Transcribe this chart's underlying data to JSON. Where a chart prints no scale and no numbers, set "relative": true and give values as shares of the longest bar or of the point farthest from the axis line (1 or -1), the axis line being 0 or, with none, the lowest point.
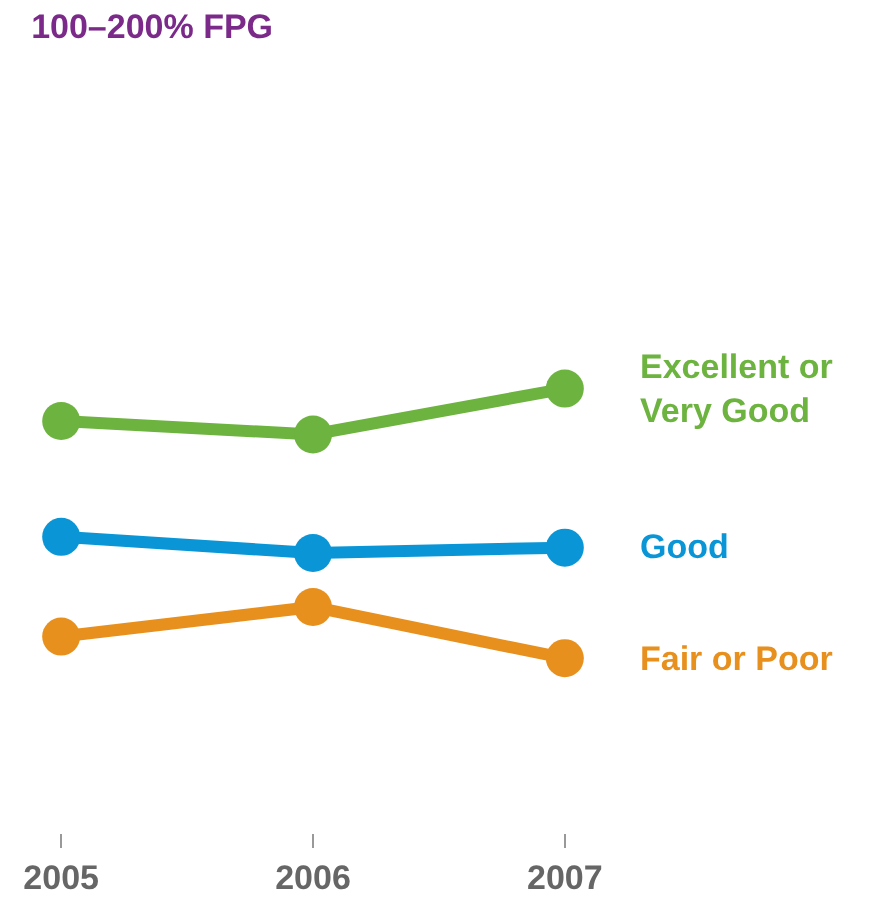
{
  "chart_data": {
    "type": "line",
    "title": "100–200% FPG",
    "relative": true,
    "categories": [
      "2005",
      "2006",
      "2007"
    ],
    "marker": "circle",
    "line_style": "solid",
    "legend": false,
    "tick_labels": "x",
    "series": [
      {
        "name": "Excellent or Very Good",
        "color": "#6db33f",
        "values": [
          0.88,
          0.83,
          1
        ]
      },
      {
        "name": "Good",
        "color": "#0a96d6",
        "values": [
          0.45,
          0.39,
          0.41
        ]
      },
      {
        "name": "Fair or Poor",
        "color": "#e8901e",
        "values": [
          0.08,
          0.19,
          0
        ]
      }
    ]
  }
}
